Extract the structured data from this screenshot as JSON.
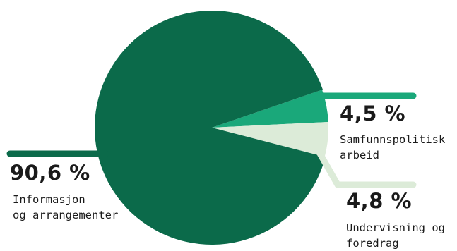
{
  "chart_data": {
    "type": "pie",
    "title": "",
    "slices": [
      {
        "label_lines": [
          "Informasjon",
          "og arrangementer"
        ],
        "percent_label": "90,6 %",
        "value": 90.6,
        "color": "#0b6a4a"
      },
      {
        "label_lines": [
          "Samfunnspolitisk",
          "arbeid"
        ],
        "percent_label": "4,5 %",
        "value": 4.5,
        "color": "#1aa87a"
      },
      {
        "label_lines": [
          "Undervisning og",
          "foredrag"
        ],
        "percent_label": "4,8 %",
        "value": 4.8,
        "color": "#dcebd8"
      }
    ]
  }
}
